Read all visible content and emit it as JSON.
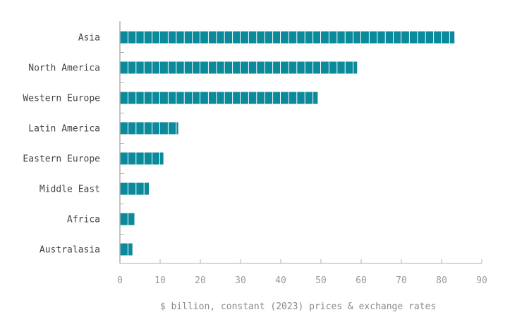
{
  "chart_data": {
    "type": "bar",
    "orientation": "horizontal",
    "categories": [
      "Asia",
      "North America",
      "Western Europe",
      "Latin America",
      "Eastern Europe",
      "Middle East",
      "Africa",
      "Australasia"
    ],
    "values": [
      83.2,
      59.0,
      49.2,
      14.5,
      10.8,
      7.2,
      3.6,
      3.1
    ],
    "xlim": [
      0,
      90
    ],
    "xticks": [
      "0",
      "10",
      "20",
      "30",
      "40",
      "50",
      "60",
      "70",
      "80",
      "90"
    ],
    "xlabel": "$ billion, constant (2023) prices & exchange rates",
    "ylabel": "",
    "title": "",
    "grid": false,
    "legend": "none",
    "segment_size": 10,
    "bar_color": "#0b8a9b",
    "axis_color": "#b0b0b0"
  }
}
